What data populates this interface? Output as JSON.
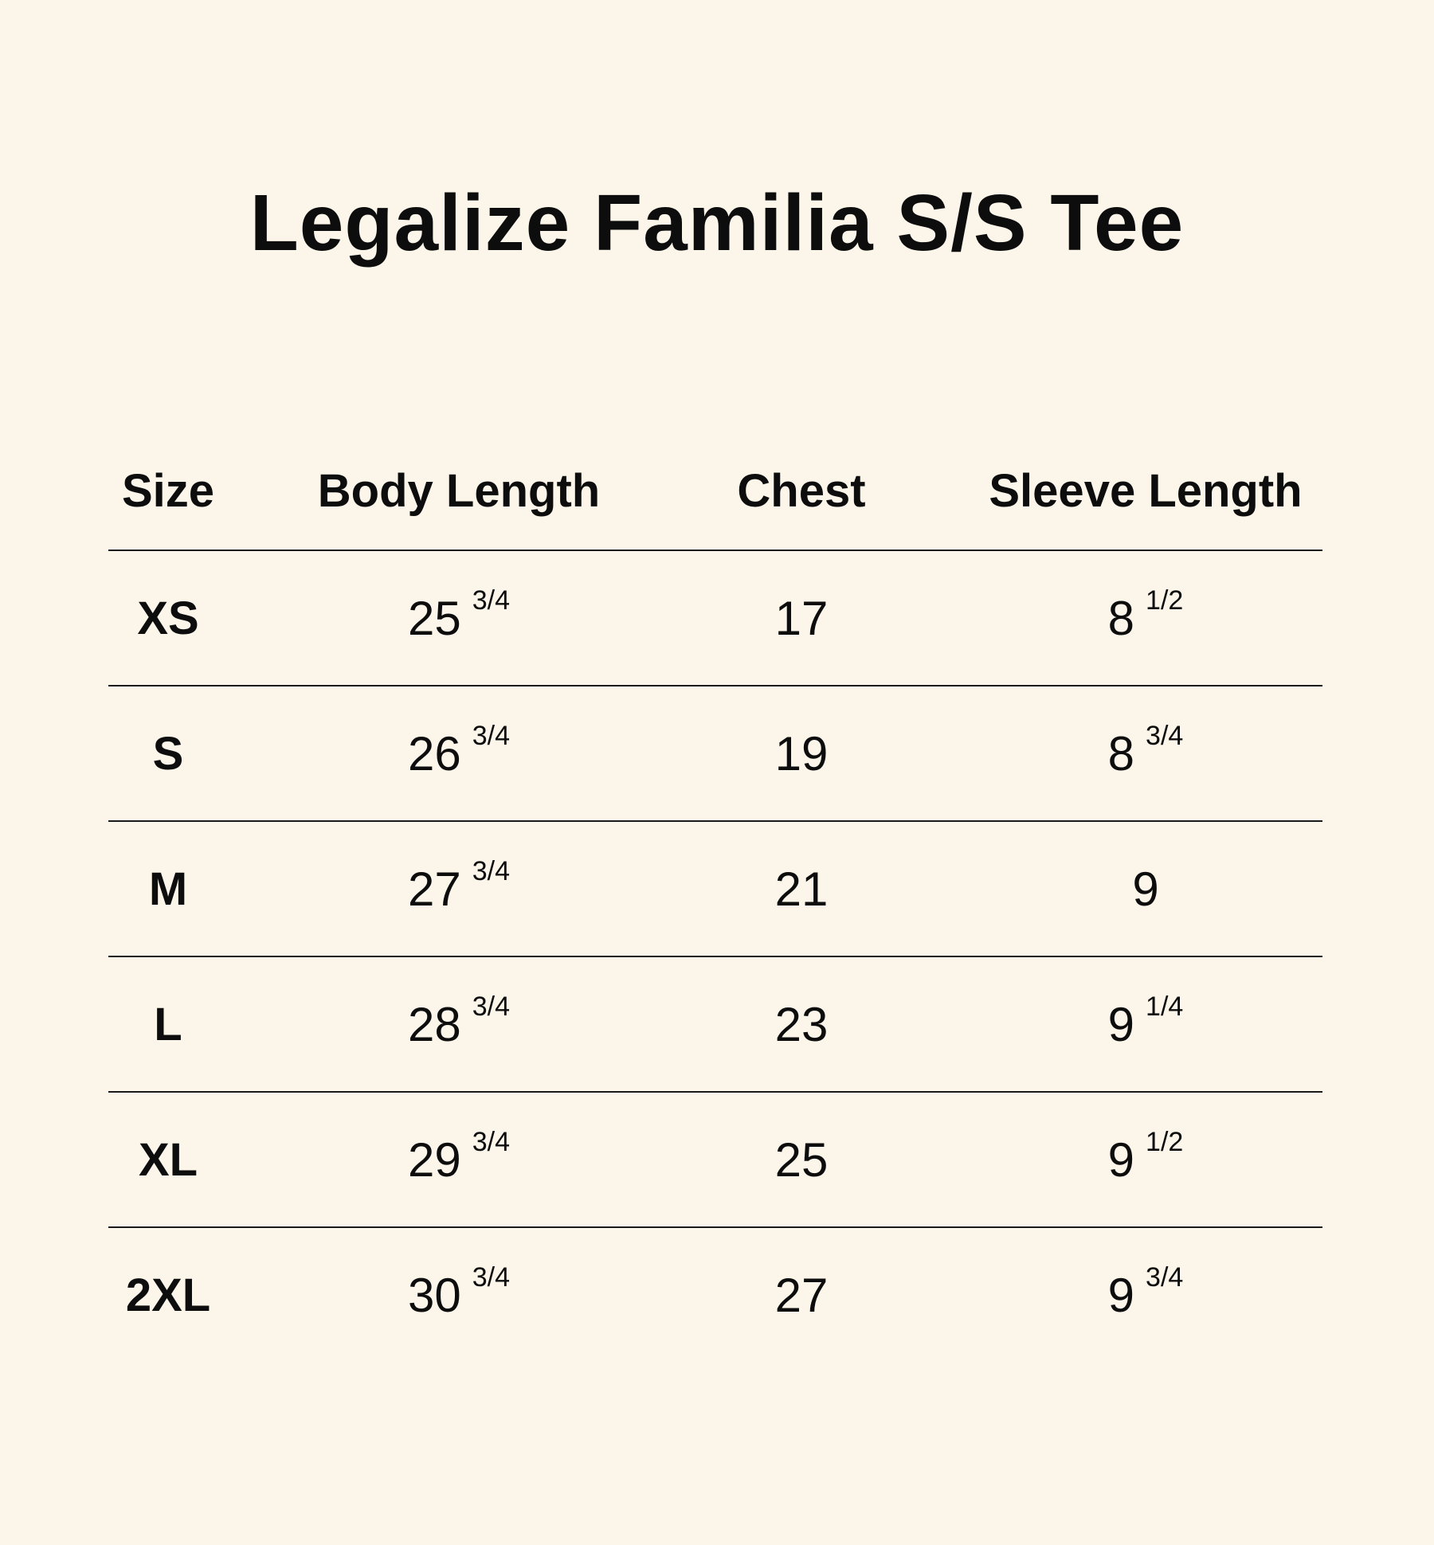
{
  "title": "Legalize Familia S/S Tee",
  "headers": {
    "size": "Size",
    "body_length": "Body Length",
    "chest": "Chest",
    "sleeve_length": "Sleeve Length"
  },
  "rows": [
    {
      "size": "XS",
      "body": "25",
      "body_frac": "3/4",
      "chest": "17",
      "sleeve": "8",
      "sleeve_frac": "1/2"
    },
    {
      "size": "S",
      "body": "26",
      "body_frac": "3/4",
      "chest": "19",
      "sleeve": "8",
      "sleeve_frac": "3/4"
    },
    {
      "size": "M",
      "body": "27",
      "body_frac": "3/4",
      "chest": "21",
      "sleeve": "9",
      "sleeve_frac": ""
    },
    {
      "size": "L",
      "body": "28",
      "body_frac": "3/4",
      "chest": "23",
      "sleeve": "9",
      "sleeve_frac": "1/4"
    },
    {
      "size": "XL",
      "body": "29",
      "body_frac": "3/4",
      "chest": "25",
      "sleeve": "9",
      "sleeve_frac": "1/2"
    },
    {
      "size": "2XL",
      "body": "30",
      "body_frac": "3/4",
      "chest": "27",
      "sleeve": "9",
      "sleeve_frac": "3/4"
    }
  ],
  "colors": {
    "background": "#fcf5e9",
    "text": "#0d0d0d",
    "rule": "#1a1a1a"
  }
}
